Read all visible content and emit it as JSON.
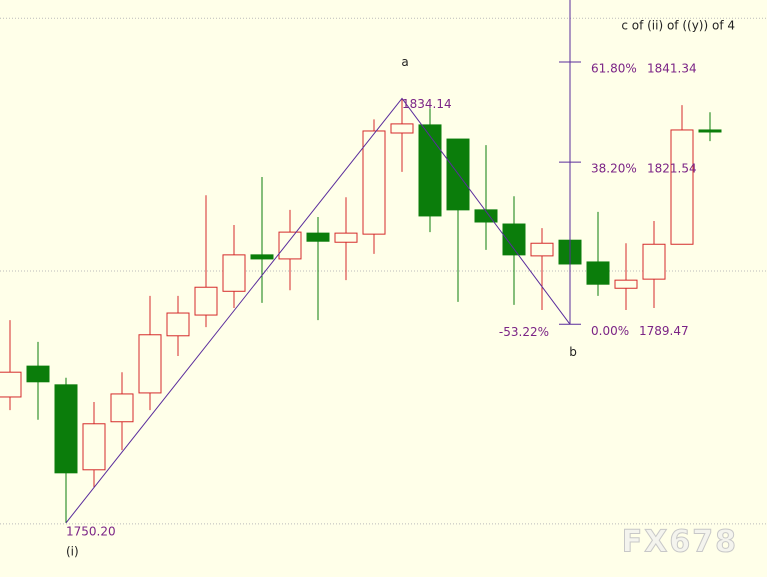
{
  "chart_data": {
    "type": "candlestick",
    "title": "c of (ii) of ((y)) of 4",
    "watermark": "FX678",
    "open": [
      1775.1,
      1781.2,
      1777.5,
      1760.7,
      1770.2,
      1775.9,
      1787.2,
      1791.3,
      1796.0,
      1803.2,
      1802.4,
      1807.5,
      1805.7,
      1807.3,
      1827.3,
      1828.9,
      1826.1,
      1812.1,
      1809.3,
      1803.0,
      1806.1,
      1801.8,
      1796.6,
      1798.4,
      1805.3,
      1827.9
    ],
    "high": [
      1790.3,
      1786.0,
      1778.9,
      1774.1,
      1780.0,
      1795.1,
      1795.1,
      1815.0,
      1809.1,
      1818.6,
      1812.1,
      1810.7,
      1814.6,
      1830.0,
      1834.14,
      1832.2,
      1826.1,
      1824.9,
      1814.8,
      1808.5,
      1807.7,
      1811.7,
      1805.5,
      1809.9,
      1832.8,
      1831.4
    ],
    "low": [
      1772.5,
      1770.6,
      1750.2,
      1757.3,
      1764.6,
      1772.5,
      1783.2,
      1788.9,
      1792.7,
      1793.7,
      1796.2,
      1790.3,
      1798.2,
      1803.4,
      1819.6,
      1807.7,
      1793.9,
      1804.2,
      1793.3,
      1792.3,
      1789.47,
      1795.1,
      1792.3,
      1792.7,
      1805.3,
      1825.7
    ],
    "close": [
      1780.0,
      1778.1,
      1760.1,
      1769.8,
      1775.7,
      1787.4,
      1791.7,
      1796.8,
      1803.2,
      1802.4,
      1807.7,
      1805.9,
      1807.5,
      1827.7,
      1829.1,
      1810.9,
      1812.1,
      1809.7,
      1803.2,
      1805.5,
      1801.4,
      1797.4,
      1798.2,
      1805.3,
      1827.9,
      1827.5
    ],
    "up_color": "#d42a2a",
    "down_color": "#0b7d0b",
    "line_color": "#5a2d9c",
    "text_color": "#7b2486",
    "ylim": [
      1739.5,
      1853.6
    ],
    "yticks": [
      1750,
      1800,
      1850
    ],
    "grid": true,
    "zigzag": [
      {
        "wave": "(i)",
        "value": 1750.2,
        "label": "1750.20"
      },
      {
        "wave": "a",
        "value": 1834.14
      },
      {
        "wave": "b",
        "value": 1789.47,
        "retracement": {
          "value": -53.22,
          "label": "-53.22%"
        }
      }
    ],
    "fib_levels": [
      {
        "ratio": {
          "value": 61.8,
          "label": "61.80%"
        },
        "value": 1841.34
      },
      {
        "ratio": {
          "value": 38.2,
          "label": "38.20%"
        },
        "value": 1821.54
      },
      {
        "ratio": {
          "value": 0,
          "label": "0.00%"
        },
        "value": 1789.47
      }
    ]
  }
}
